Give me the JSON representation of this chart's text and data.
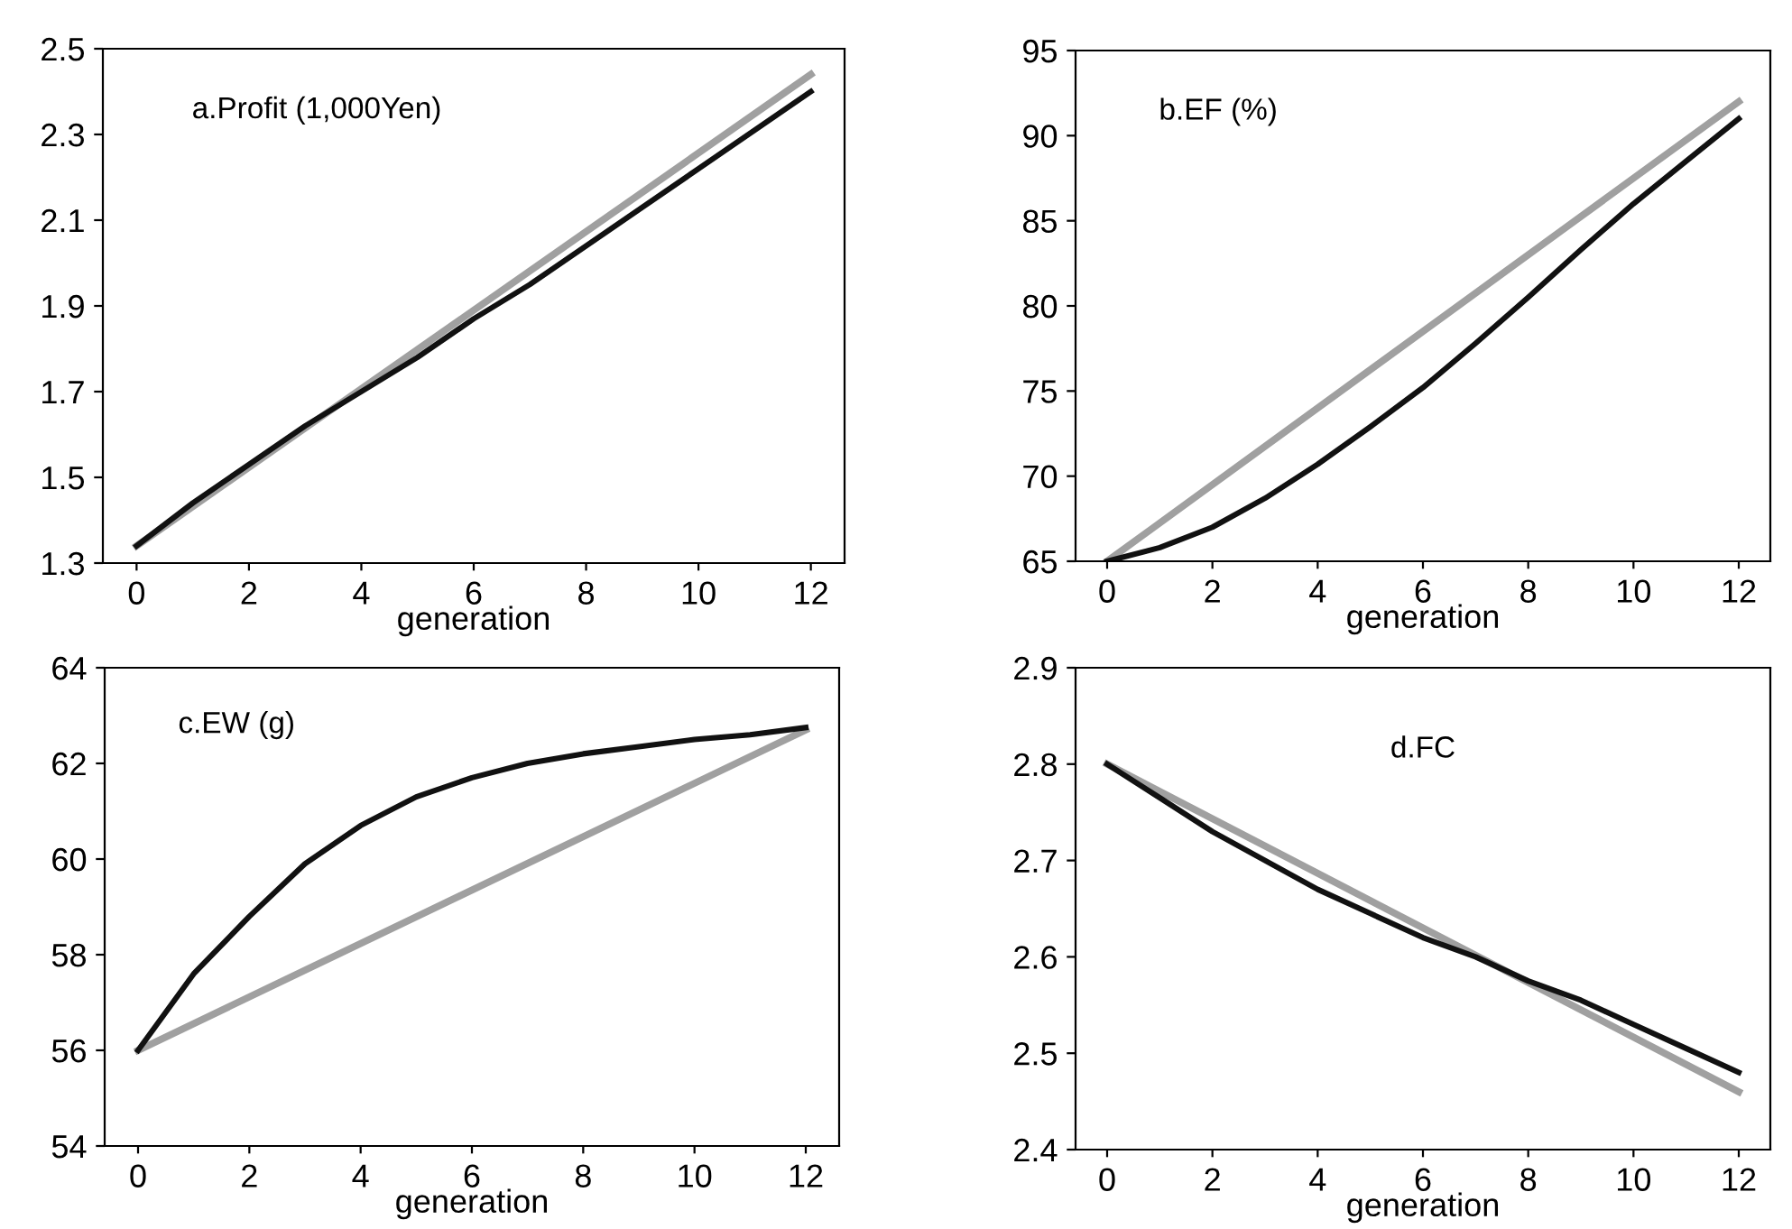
{
  "chart_data": [
    {
      "type": "line",
      "title": "a.Profit (1,000Yen)",
      "xlabel": "generation",
      "xlim": [
        -0.6,
        12.6
      ],
      "xticks": [
        0,
        2,
        4,
        6,
        8,
        10,
        12
      ],
      "ylim": [
        1.3,
        2.5
      ],
      "yticks": [
        1.3,
        1.5,
        1.7,
        1.9,
        2.1,
        2.3,
        2.5
      ],
      "grid": false,
      "legend": false,
      "line_style": "solid",
      "marker": "none",
      "series": [
        {
          "color": "#a0a0a0",
          "x": [
            0,
            12
          ],
          "values": [
            1.34,
            2.44
          ]
        },
        {
          "color": "#111111",
          "x": [
            0,
            1,
            2,
            3,
            4,
            5,
            6,
            7,
            8,
            9,
            10,
            11,
            12
          ],
          "values": [
            1.34,
            1.44,
            1.53,
            1.62,
            1.7,
            1.78,
            1.87,
            1.95,
            2.04,
            2.13,
            2.22,
            2.31,
            2.4
          ]
        }
      ]
    },
    {
      "type": "line",
      "title": "b.EF (%)",
      "xlabel": "generation",
      "xlim": [
        -0.6,
        12.6
      ],
      "xticks": [
        0,
        2,
        4,
        6,
        8,
        10,
        12
      ],
      "ylim": [
        65,
        95
      ],
      "yticks": [
        65,
        70,
        75,
        80,
        85,
        90,
        95
      ],
      "grid": false,
      "legend": false,
      "line_style": "solid",
      "marker": "none",
      "series": [
        {
          "color": "#a0a0a0",
          "x": [
            0,
            12
          ],
          "values": [
            65,
            92
          ]
        },
        {
          "color": "#111111",
          "x": [
            0,
            1,
            2,
            3,
            4,
            5,
            6,
            7,
            8,
            9,
            10,
            11,
            12
          ],
          "values": [
            65,
            65.8,
            67,
            68.7,
            70.7,
            72.9,
            75.2,
            77.8,
            80.5,
            83.3,
            86,
            88.5,
            91
          ]
        }
      ]
    },
    {
      "type": "line",
      "title": "c.EW (g)",
      "xlabel": "generation",
      "xlim": [
        -0.6,
        12.6
      ],
      "xticks": [
        0,
        2,
        4,
        6,
        8,
        10,
        12
      ],
      "ylim": [
        54,
        64
      ],
      "yticks": [
        54,
        56,
        58,
        60,
        62,
        64
      ],
      "grid": false,
      "legend": false,
      "line_style": "solid",
      "marker": "none",
      "series": [
        {
          "color": "#a0a0a0",
          "x": [
            0,
            12
          ],
          "values": [
            56.0,
            62.7
          ]
        },
        {
          "color": "#111111",
          "x": [
            0,
            1,
            2,
            3,
            4,
            5,
            6,
            7,
            8,
            9,
            10,
            11,
            12
          ],
          "values": [
            56.0,
            57.6,
            58.8,
            59.9,
            60.7,
            61.3,
            61.7,
            62.0,
            62.2,
            62.35,
            62.5,
            62.6,
            62.75
          ]
        }
      ]
    },
    {
      "type": "line",
      "title": "d.FC",
      "xlabel": "generation",
      "xlim": [
        -0.6,
        12.6
      ],
      "xticks": [
        0,
        2,
        4,
        6,
        8,
        10,
        12
      ],
      "ylim": [
        2.4,
        2.9
      ],
      "yticks": [
        2.4,
        2.5,
        2.6,
        2.7,
        2.8,
        2.9
      ],
      "grid": false,
      "legend": false,
      "line_style": "solid",
      "marker": "none",
      "series": [
        {
          "color": "#a0a0a0",
          "x": [
            0,
            12
          ],
          "values": [
            2.8,
            2.46
          ]
        },
        {
          "color": "#111111",
          "x": [
            0,
            1,
            2,
            3,
            4,
            5,
            6,
            7,
            8,
            9,
            10,
            11,
            12
          ],
          "values": [
            2.8,
            2.765,
            2.73,
            2.7,
            2.67,
            2.645,
            2.62,
            2.6,
            2.575,
            2.555,
            2.53,
            2.505,
            2.48
          ]
        }
      ]
    }
  ]
}
